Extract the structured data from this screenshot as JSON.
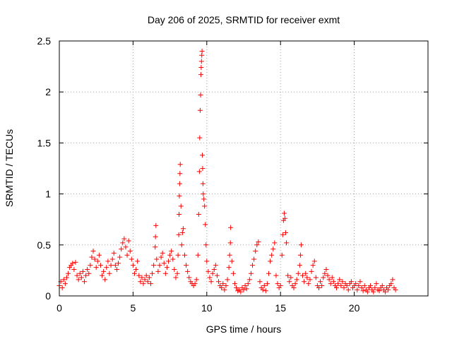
{
  "chart_data": {
    "type": "scatter",
    "title": "Day 206 of 2025, SRMTID for receiver exmt",
    "xlabel": "GPS time / hours",
    "ylabel": "SRMTID / TECUs",
    "xlim": [
      0,
      25
    ],
    "ylim": [
      0,
      2.5
    ],
    "xticks": [
      0,
      5,
      10,
      15,
      20
    ],
    "yticks": [
      0,
      0.5,
      1,
      1.5,
      2,
      2.5
    ],
    "xtick_labels": [
      "0",
      "5",
      "10",
      "15",
      "20"
    ],
    "ytick_labels": [
      "0",
      "0.5",
      "1",
      "1.5",
      "2",
      "2.5"
    ],
    "grid": true,
    "marker": "+",
    "color": "#ff0000",
    "series": [
      {
        "name": "SRMTID",
        "points": [
          [
            0.0,
            0.1
          ],
          [
            0.1,
            0.14
          ],
          [
            0.2,
            0.08
          ],
          [
            0.3,
            0.16
          ],
          [
            0.4,
            0.12
          ],
          [
            0.5,
            0.18
          ],
          [
            0.6,
            0.22
          ],
          [
            0.7,
            0.28
          ],
          [
            0.8,
            0.3
          ],
          [
            0.9,
            0.32
          ],
          [
            1.0,
            0.26
          ],
          [
            1.1,
            0.33
          ],
          [
            1.2,
            0.2
          ],
          [
            1.3,
            0.16
          ],
          [
            1.4,
            0.22
          ],
          [
            1.5,
            0.18
          ],
          [
            1.6,
            0.24
          ],
          [
            1.7,
            0.14
          ],
          [
            1.8,
            0.2
          ],
          [
            1.9,
            0.26
          ],
          [
            2.0,
            0.22
          ],
          [
            2.1,
            0.3
          ],
          [
            2.2,
            0.38
          ],
          [
            2.3,
            0.44
          ],
          [
            2.4,
            0.36
          ],
          [
            2.5,
            0.28
          ],
          [
            2.6,
            0.34
          ],
          [
            2.7,
            0.4
          ],
          [
            2.8,
            0.3
          ],
          [
            2.9,
            0.2
          ],
          [
            3.0,
            0.24
          ],
          [
            3.1,
            0.16
          ],
          [
            3.2,
            0.28
          ],
          [
            3.3,
            0.34
          ],
          [
            3.4,
            0.22
          ],
          [
            3.5,
            0.3
          ],
          [
            3.6,
            0.36
          ],
          [
            3.7,
            0.42
          ],
          [
            3.8,
            0.3
          ],
          [
            3.9,
            0.26
          ],
          [
            4.0,
            0.32
          ],
          [
            4.1,
            0.38
          ],
          [
            4.2,
            0.46
          ],
          [
            4.3,
            0.52
          ],
          [
            4.4,
            0.56
          ],
          [
            4.5,
            0.48
          ],
          [
            4.6,
            0.4
          ],
          [
            4.7,
            0.54
          ],
          [
            4.8,
            0.44
          ],
          [
            4.9,
            0.36
          ],
          [
            5.0,
            0.3
          ],
          [
            5.1,
            0.22
          ],
          [
            5.2,
            0.26
          ],
          [
            5.3,
            0.34
          ],
          [
            5.4,
            0.2
          ],
          [
            5.5,
            0.14
          ],
          [
            5.6,
            0.18
          ],
          [
            5.7,
            0.12
          ],
          [
            5.8,
            0.16
          ],
          [
            5.9,
            0.2
          ],
          [
            6.0,
            0.14
          ],
          [
            6.1,
            0.18
          ],
          [
            6.2,
            0.12
          ],
          [
            6.3,
            0.22
          ],
          [
            6.4,
            0.3
          ],
          [
            6.5,
            0.48
          ],
          [
            6.52,
            0.58
          ],
          [
            6.55,
            0.69
          ],
          [
            6.6,
            0.36
          ],
          [
            6.7,
            0.24
          ],
          [
            6.8,
            0.3
          ],
          [
            6.9,
            0.38
          ],
          [
            7.0,
            0.42
          ],
          [
            7.1,
            0.32
          ],
          [
            7.2,
            0.22
          ],
          [
            7.3,
            0.28
          ],
          [
            7.4,
            0.34
          ],
          [
            7.5,
            0.4
          ],
          [
            7.6,
            0.44
          ],
          [
            7.7,
            0.36
          ],
          [
            7.8,
            0.26
          ],
          [
            7.9,
            0.18
          ],
          [
            8.0,
            0.22
          ],
          [
            8.05,
            0.4
          ],
          [
            8.1,
            0.6
          ],
          [
            8.12,
            0.8
          ],
          [
            8.14,
            0.98
          ],
          [
            8.16,
            1.1
          ],
          [
            8.18,
            1.2
          ],
          [
            8.2,
            1.29
          ],
          [
            8.25,
            0.88
          ],
          [
            8.3,
            0.5
          ],
          [
            8.35,
            0.62
          ],
          [
            8.4,
            0.66
          ],
          [
            8.5,
            0.4
          ],
          [
            8.6,
            0.3
          ],
          [
            8.7,
            0.24
          ],
          [
            8.8,
            0.18
          ],
          [
            8.9,
            0.14
          ],
          [
            9.0,
            0.12
          ],
          [
            9.1,
            0.1
          ],
          [
            9.2,
            0.12
          ],
          [
            9.3,
            0.16
          ],
          [
            9.4,
            0.4
          ],
          [
            9.45,
            0.8
          ],
          [
            9.5,
            1.22
          ],
          [
            9.52,
            1.55
          ],
          [
            9.55,
            1.82
          ],
          [
            9.58,
            1.97
          ],
          [
            9.6,
            2.17
          ],
          [
            9.62,
            2.24
          ],
          [
            9.64,
            2.3
          ],
          [
            9.66,
            2.36
          ],
          [
            9.68,
            2.4
          ],
          [
            9.7,
            1.38
          ],
          [
            9.72,
            1.25
          ],
          [
            9.74,
            1.1
          ],
          [
            9.76,
            1.0
          ],
          [
            9.8,
            0.95
          ],
          [
            9.85,
            0.88
          ],
          [
            9.9,
            0.7
          ],
          [
            9.95,
            0.5
          ],
          [
            10.0,
            0.34
          ],
          [
            10.1,
            0.24
          ],
          [
            10.2,
            0.18
          ],
          [
            10.3,
            0.14
          ],
          [
            10.4,
            0.22
          ],
          [
            10.5,
            0.26
          ],
          [
            10.6,
            0.3
          ],
          [
            10.7,
            0.2
          ],
          [
            10.8,
            0.14
          ],
          [
            10.9,
            0.1
          ],
          [
            11.0,
            0.08
          ],
          [
            11.1,
            0.12
          ],
          [
            11.2,
            0.06
          ],
          [
            11.3,
            0.1
          ],
          [
            11.4,
            0.16
          ],
          [
            11.5,
            0.28
          ],
          [
            11.55,
            0.4
          ],
          [
            11.6,
            0.52
          ],
          [
            11.62,
            0.67
          ],
          [
            11.7,
            0.34
          ],
          [
            11.8,
            0.22
          ],
          [
            11.9,
            0.12
          ],
          [
            12.0,
            0.08
          ],
          [
            12.1,
            0.05
          ],
          [
            12.2,
            0.06
          ],
          [
            12.3,
            0.04
          ],
          [
            12.4,
            0.08
          ],
          [
            12.5,
            0.06
          ],
          [
            12.6,
            0.1
          ],
          [
            12.7,
            0.07
          ],
          [
            12.8,
            0.12
          ],
          [
            12.9,
            0.16
          ],
          [
            13.0,
            0.22
          ],
          [
            13.1,
            0.3
          ],
          [
            13.2,
            0.36
          ],
          [
            13.3,
            0.44
          ],
          [
            13.4,
            0.5
          ],
          [
            13.5,
            0.53
          ],
          [
            13.6,
            0.14
          ],
          [
            13.7,
            0.08
          ],
          [
            13.8,
            0.06
          ],
          [
            13.9,
            0.1
          ],
          [
            14.0,
            0.05
          ],
          [
            14.1,
            0.12
          ],
          [
            14.2,
            0.22
          ],
          [
            14.3,
            0.34
          ],
          [
            14.4,
            0.4
          ],
          [
            14.5,
            0.46
          ],
          [
            14.6,
            0.52
          ],
          [
            14.7,
            0.2
          ],
          [
            14.8,
            0.12
          ],
          [
            14.9,
            0.08
          ],
          [
            15.0,
            0.1
          ],
          [
            15.1,
            0.4
          ],
          [
            15.15,
            0.6
          ],
          [
            15.2,
            0.74
          ],
          [
            15.25,
            0.81
          ],
          [
            15.3,
            0.76
          ],
          [
            15.35,
            0.62
          ],
          [
            15.4,
            0.52
          ],
          [
            15.5,
            0.2
          ],
          [
            15.6,
            0.14
          ],
          [
            15.7,
            0.18
          ],
          [
            15.8,
            0.1
          ],
          [
            15.9,
            0.08
          ],
          [
            16.0,
            0.12
          ],
          [
            16.1,
            0.16
          ],
          [
            16.2,
            0.22
          ],
          [
            16.3,
            0.3
          ],
          [
            16.35,
            0.4
          ],
          [
            16.4,
            0.5
          ],
          [
            16.5,
            0.2
          ],
          [
            16.6,
            0.14
          ],
          [
            16.7,
            0.22
          ],
          [
            16.8,
            0.18
          ],
          [
            16.9,
            0.12
          ],
          [
            17.0,
            0.16
          ],
          [
            17.1,
            0.24
          ],
          [
            17.2,
            0.3
          ],
          [
            17.3,
            0.34
          ],
          [
            17.4,
            0.18
          ],
          [
            17.5,
            0.1
          ],
          [
            17.6,
            0.08
          ],
          [
            17.7,
            0.14
          ],
          [
            17.8,
            0.1
          ],
          [
            17.9,
            0.18
          ],
          [
            18.0,
            0.22
          ],
          [
            18.1,
            0.26
          ],
          [
            18.2,
            0.2
          ],
          [
            18.3,
            0.16
          ],
          [
            18.4,
            0.12
          ],
          [
            18.5,
            0.18
          ],
          [
            18.6,
            0.14
          ],
          [
            18.7,
            0.1
          ],
          [
            18.8,
            0.08
          ],
          [
            18.9,
            0.12
          ],
          [
            19.0,
            0.16
          ],
          [
            19.1,
            0.1
          ],
          [
            19.2,
            0.14
          ],
          [
            19.3,
            0.08
          ],
          [
            19.4,
            0.12
          ],
          [
            19.5,
            0.1
          ],
          [
            19.6,
            0.06
          ],
          [
            19.7,
            0.12
          ],
          [
            19.8,
            0.14
          ],
          [
            19.9,
            0.08
          ],
          [
            20.0,
            0.1
          ],
          [
            20.1,
            0.12
          ],
          [
            20.2,
            0.06
          ],
          [
            20.3,
            0.1
          ],
          [
            20.4,
            0.14
          ],
          [
            20.5,
            0.08
          ],
          [
            20.6,
            0.05
          ],
          [
            20.7,
            0.1
          ],
          [
            20.8,
            0.06
          ],
          [
            20.9,
            0.04
          ],
          [
            21.0,
            0.08
          ],
          [
            21.1,
            0.1
          ],
          [
            21.2,
            0.06
          ],
          [
            21.3,
            0.04
          ],
          [
            21.4,
            0.08
          ],
          [
            21.5,
            0.12
          ],
          [
            21.6,
            0.06
          ],
          [
            21.7,
            0.05
          ],
          [
            21.8,
            0.08
          ],
          [
            21.9,
            0.1
          ],
          [
            22.0,
            0.06
          ],
          [
            22.1,
            0.04
          ],
          [
            22.2,
            0.08
          ],
          [
            22.3,
            0.06
          ],
          [
            22.4,
            0.1
          ],
          [
            22.5,
            0.12
          ],
          [
            22.6,
            0.16
          ],
          [
            22.7,
            0.08
          ],
          [
            22.8,
            0.06
          ]
        ]
      }
    ]
  }
}
